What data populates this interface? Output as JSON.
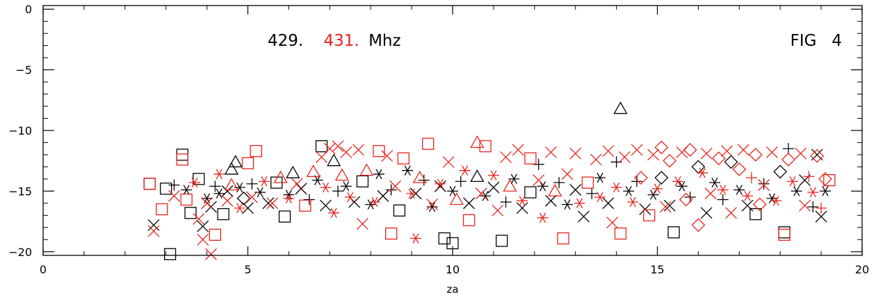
{
  "chart_data": {
    "type": "scatter",
    "title": "",
    "xlabel": "za",
    "ylabel": "",
    "xlim": [
      0,
      20
    ],
    "ylim": [
      -20.3,
      0.3
    ],
    "x_ticks": [
      "0",
      "5",
      "10",
      "15",
      "20"
    ],
    "y_ticks": [
      "0",
      "-5",
      "-10",
      "-15",
      "-20"
    ],
    "annotations": {
      "freq_black": "429.",
      "freq_red": "431.",
      "freq_unit": "Mhz",
      "fig_label": "FIG   4"
    },
    "colors": {
      "series_black": "#000000",
      "series_red": "#e8221a"
    },
    "series": [
      {
        "color": "black",
        "points": [
          [
            2.6,
            -14.4,
            "square"
          ],
          [
            2.7,
            -17.8,
            "x"
          ],
          [
            3.0,
            -14.8,
            "square"
          ],
          [
            3.1,
            -20.2,
            "square"
          ],
          [
            3.2,
            -14.5,
            "plus"
          ],
          [
            3.4,
            -12.0,
            "square"
          ],
          [
            3.5,
            -14.9,
            "asterisk"
          ],
          [
            3.6,
            -16.8,
            "square"
          ],
          [
            3.8,
            -14.0,
            "square"
          ],
          [
            3.9,
            -17.9,
            "x"
          ],
          [
            4.0,
            -15.6,
            "asterisk"
          ],
          [
            4.1,
            -16.3,
            "x"
          ],
          [
            4.2,
            -14.6,
            "plus"
          ],
          [
            4.3,
            -15.2,
            "asterisk"
          ],
          [
            4.4,
            -16.9,
            "square"
          ],
          [
            4.5,
            -15.0,
            "x"
          ],
          [
            4.6,
            -13.2,
            "triangle"
          ],
          [
            4.7,
            -12.6,
            "triangle"
          ],
          [
            4.8,
            -14.7,
            "asterisk"
          ],
          [
            4.9,
            -15.6,
            "diamond"
          ],
          [
            5.0,
            -16.4,
            "x"
          ],
          [
            5.1,
            -14.4,
            "plus"
          ],
          [
            5.3,
            -15.1,
            "asterisk"
          ],
          [
            5.5,
            -16.0,
            "x"
          ],
          [
            5.7,
            -14.3,
            "square"
          ],
          [
            5.9,
            -17.1,
            "square"
          ],
          [
            6.0,
            -15.3,
            "asterisk"
          ],
          [
            6.1,
            -13.5,
            "triangle"
          ],
          [
            6.3,
            -14.8,
            "x"
          ],
          [
            6.5,
            -15.7,
            "plus"
          ],
          [
            6.7,
            -14.1,
            "asterisk"
          ],
          [
            6.8,
            -11.3,
            "square"
          ],
          [
            6.9,
            -16.2,
            "x"
          ],
          [
            7.1,
            -12.5,
            "triangle"
          ],
          [
            7.2,
            -15.0,
            "plus"
          ],
          [
            7.4,
            -14.6,
            "asterisk"
          ],
          [
            7.6,
            -15.9,
            "x"
          ],
          [
            7.8,
            -14.2,
            "square"
          ],
          [
            8.0,
            -16.1,
            "asterisk"
          ],
          [
            8.2,
            -13.6,
            "asterisk"
          ],
          [
            8.3,
            -15.4,
            "x"
          ],
          [
            8.5,
            -14.9,
            "plus"
          ],
          [
            8.7,
            -16.6,
            "square"
          ],
          [
            8.9,
            -13.3,
            "asterisk"
          ],
          [
            9.1,
            -15.2,
            "x"
          ],
          [
            9.3,
            -14.1,
            "plus"
          ],
          [
            9.5,
            -16.3,
            "asterisk"
          ],
          [
            9.7,
            -14.6,
            "x"
          ],
          [
            9.8,
            -18.9,
            "square"
          ],
          [
            10.0,
            -19.3,
            "square"
          ],
          [
            10.0,
            -15.0,
            "asterisk"
          ],
          [
            10.2,
            -14.2,
            "plus"
          ],
          [
            10.4,
            -16.0,
            "x"
          ],
          [
            10.6,
            -13.8,
            "triangle"
          ],
          [
            10.8,
            -15.4,
            "asterisk"
          ],
          [
            11.0,
            -14.7,
            "x"
          ],
          [
            11.2,
            -19.1,
            "square"
          ],
          [
            11.3,
            -15.9,
            "plus"
          ],
          [
            11.5,
            -14.0,
            "asterisk"
          ],
          [
            11.7,
            -16.4,
            "x"
          ],
          [
            11.9,
            -15.1,
            "square"
          ],
          [
            12.1,
            -12.8,
            "plus"
          ],
          [
            12.2,
            -14.6,
            "asterisk"
          ],
          [
            12.4,
            -15.8,
            "x"
          ],
          [
            12.6,
            -14.3,
            "plus"
          ],
          [
            12.8,
            -16.1,
            "asterisk"
          ],
          [
            13.0,
            -14.9,
            "x"
          ],
          [
            13.2,
            -17.1,
            "x"
          ],
          [
            13.4,
            -15.2,
            "plus"
          ],
          [
            13.6,
            -13.9,
            "asterisk"
          ],
          [
            13.8,
            -16.0,
            "x"
          ],
          [
            14.0,
            -12.6,
            "plus"
          ],
          [
            14.1,
            -8.2,
            "triangle"
          ],
          [
            14.3,
            -15.0,
            "asterisk"
          ],
          [
            14.5,
            -14.2,
            "plus"
          ],
          [
            14.7,
            -16.5,
            "x"
          ],
          [
            14.9,
            -15.3,
            "asterisk"
          ],
          [
            15.1,
            -13.9,
            "diamond"
          ],
          [
            15.3,
            -16.2,
            "x"
          ],
          [
            15.4,
            -18.4,
            "square"
          ],
          [
            15.6,
            -14.6,
            "asterisk"
          ],
          [
            15.8,
            -15.5,
            "plus"
          ],
          [
            16.0,
            -13.0,
            "diamond"
          ],
          [
            16.2,
            -16.8,
            "x"
          ],
          [
            16.4,
            -14.3,
            "asterisk"
          ],
          [
            16.6,
            -15.7,
            "plus"
          ],
          [
            16.8,
            -12.6,
            "diamond"
          ],
          [
            17.0,
            -14.9,
            "asterisk"
          ],
          [
            17.2,
            -16.2,
            "x"
          ],
          [
            17.4,
            -16.9,
            "square"
          ],
          [
            17.6,
            -14.4,
            "plus"
          ],
          [
            17.8,
            -15.6,
            "asterisk"
          ],
          [
            18.0,
            -13.4,
            "diamond"
          ],
          [
            18.1,
            -18.4,
            "square"
          ],
          [
            18.2,
            -11.5,
            "plus"
          ],
          [
            18.4,
            -15.0,
            "asterisk"
          ],
          [
            18.6,
            -14.1,
            "x"
          ],
          [
            18.8,
            -16.3,
            "plus"
          ],
          [
            18.9,
            -12.0,
            "x"
          ],
          [
            19.0,
            -17.1,
            "x"
          ],
          [
            19.1,
            -15.0,
            "asterisk"
          ]
        ]
      },
      {
        "color": "red",
        "points": [
          [
            2.6,
            -14.4,
            "square"
          ],
          [
            2.7,
            -18.3,
            "x"
          ],
          [
            2.9,
            -16.5,
            "square"
          ],
          [
            3.2,
            -15.4,
            "x"
          ],
          [
            3.4,
            -12.4,
            "square"
          ],
          [
            3.5,
            -15.7,
            "square"
          ],
          [
            3.7,
            -14.3,
            "asterisk"
          ],
          [
            3.8,
            -17.3,
            "x"
          ],
          [
            3.9,
            -19.0,
            "x"
          ],
          [
            4.0,
            -16.0,
            "x"
          ],
          [
            4.1,
            -20.2,
            "x"
          ],
          [
            4.2,
            -18.6,
            "square"
          ],
          [
            4.3,
            -13.6,
            "asterisk"
          ],
          [
            4.5,
            -15.8,
            "x"
          ],
          [
            4.6,
            -14.5,
            "triangle"
          ],
          [
            4.8,
            -16.4,
            "asterisk"
          ],
          [
            5.0,
            -12.7,
            "square"
          ],
          [
            5.1,
            -15.5,
            "x"
          ],
          [
            5.2,
            -11.7,
            "square"
          ],
          [
            5.4,
            -14.2,
            "asterisk"
          ],
          [
            5.6,
            -16.0,
            "x"
          ],
          [
            5.8,
            -13.9,
            "triangle"
          ],
          [
            6.0,
            -15.6,
            "asterisk"
          ],
          [
            6.2,
            -14.4,
            "x"
          ],
          [
            6.4,
            -16.2,
            "square"
          ],
          [
            6.6,
            -13.4,
            "triangle"
          ],
          [
            6.8,
            -12.2,
            "x"
          ],
          [
            6.9,
            -14.7,
            "asterisk"
          ],
          [
            7.0,
            -11.5,
            "x"
          ],
          [
            7.1,
            -16.8,
            "asterisk"
          ],
          [
            7.2,
            -11.3,
            "x"
          ],
          [
            7.3,
            -13.7,
            "triangle"
          ],
          [
            7.4,
            -11.8,
            "x"
          ],
          [
            7.5,
            -15.5,
            "asterisk"
          ],
          [
            7.7,
            -11.6,
            "x"
          ],
          [
            7.8,
            -17.7,
            "x"
          ],
          [
            7.9,
            -13.3,
            "triangle"
          ],
          [
            8.1,
            -15.9,
            "asterisk"
          ],
          [
            8.2,
            -11.7,
            "square"
          ],
          [
            8.4,
            -12.1,
            "x"
          ],
          [
            8.5,
            -18.5,
            "square"
          ],
          [
            8.6,
            -14.6,
            "x"
          ],
          [
            8.8,
            -12.3,
            "square"
          ],
          [
            9.0,
            -15.2,
            "asterisk"
          ],
          [
            9.1,
            -18.9,
            "asterisk"
          ],
          [
            9.2,
            -13.9,
            "triangle"
          ],
          [
            9.4,
            -11.1,
            "square"
          ],
          [
            9.5,
            -16.1,
            "x"
          ],
          [
            9.7,
            -14.4,
            "asterisk"
          ],
          [
            9.9,
            -12.6,
            "x"
          ],
          [
            10.1,
            -15.7,
            "triangle"
          ],
          [
            10.3,
            -13.3,
            "asterisk"
          ],
          [
            10.4,
            -17.4,
            "square"
          ],
          [
            10.6,
            -11.0,
            "triangle"
          ],
          [
            10.7,
            -15.2,
            "x"
          ],
          [
            10.8,
            -11.3,
            "square"
          ],
          [
            11.0,
            -13.7,
            "asterisk"
          ],
          [
            11.1,
            -16.6,
            "x"
          ],
          [
            11.3,
            -12.2,
            "x"
          ],
          [
            11.4,
            -14.6,
            "triangle"
          ],
          [
            11.6,
            -11.6,
            "x"
          ],
          [
            11.7,
            -15.8,
            "asterisk"
          ],
          [
            11.9,
            -12.3,
            "square"
          ],
          [
            12.1,
            -14.1,
            "x"
          ],
          [
            12.2,
            -17.2,
            "asterisk"
          ],
          [
            12.4,
            -11.8,
            "x"
          ],
          [
            12.5,
            -15.0,
            "triangle"
          ],
          [
            12.7,
            -18.9,
            "square"
          ],
          [
            12.8,
            -13.6,
            "x"
          ],
          [
            13.0,
            -11.9,
            "x"
          ],
          [
            13.1,
            -16.0,
            "asterisk"
          ],
          [
            13.3,
            -14.3,
            "square"
          ],
          [
            13.5,
            -12.4,
            "x"
          ],
          [
            13.6,
            -15.5,
            "asterisk"
          ],
          [
            13.8,
            -11.7,
            "x"
          ],
          [
            13.9,
            -17.6,
            "x"
          ],
          [
            14.0,
            -14.7,
            "asterisk"
          ],
          [
            14.1,
            -18.5,
            "square"
          ],
          [
            14.2,
            -12.2,
            "x"
          ],
          [
            14.4,
            -15.9,
            "asterisk"
          ],
          [
            14.5,
            -11.6,
            "x"
          ],
          [
            14.6,
            -13.9,
            "diamond"
          ],
          [
            14.8,
            -17.0,
            "square"
          ],
          [
            14.9,
            -12.0,
            "x"
          ],
          [
            15.0,
            -14.8,
            "asterisk"
          ],
          [
            15.1,
            -11.4,
            "diamond"
          ],
          [
            15.2,
            -16.3,
            "x"
          ],
          [
            15.3,
            -12.5,
            "diamond"
          ],
          [
            15.5,
            -14.2,
            "asterisk"
          ],
          [
            15.6,
            -11.8,
            "x"
          ],
          [
            15.7,
            -15.7,
            "diamond"
          ],
          [
            15.8,
            -11.6,
            "diamond"
          ],
          [
            16.0,
            -17.8,
            "diamond"
          ],
          [
            16.1,
            -13.5,
            "asterisk"
          ],
          [
            16.2,
            -11.9,
            "x"
          ],
          [
            16.3,
            -15.2,
            "x"
          ],
          [
            16.5,
            -12.3,
            "diamond"
          ],
          [
            16.6,
            -14.9,
            "asterisk"
          ],
          [
            16.7,
            -11.7,
            "x"
          ],
          [
            16.8,
            -16.8,
            "x"
          ],
          [
            17.0,
            -13.2,
            "diamond"
          ],
          [
            17.1,
            -11.6,
            "x"
          ],
          [
            17.2,
            -15.4,
            "asterisk"
          ],
          [
            17.3,
            -13.9,
            "plus"
          ],
          [
            17.4,
            -12.0,
            "diamond"
          ],
          [
            17.5,
            -16.1,
            "diamond"
          ],
          [
            17.6,
            -14.5,
            "x"
          ],
          [
            17.8,
            -11.8,
            "x"
          ],
          [
            17.9,
            -15.8,
            "asterisk"
          ],
          [
            18.1,
            -18.6,
            "square"
          ],
          [
            18.2,
            -12.4,
            "diamond"
          ],
          [
            18.3,
            -14.2,
            "asterisk"
          ],
          [
            18.5,
            -11.9,
            "x"
          ],
          [
            18.6,
            -16.2,
            "x"
          ],
          [
            18.7,
            -13.8,
            "plus"
          ],
          [
            18.8,
            -15.1,
            "asterisk"
          ],
          [
            18.9,
            -12.1,
            "diamond"
          ],
          [
            19.0,
            -16.4,
            "plus"
          ],
          [
            19.1,
            -14.0,
            "diamond"
          ],
          [
            19.2,
            -14.1,
            "square"
          ]
        ]
      }
    ]
  }
}
